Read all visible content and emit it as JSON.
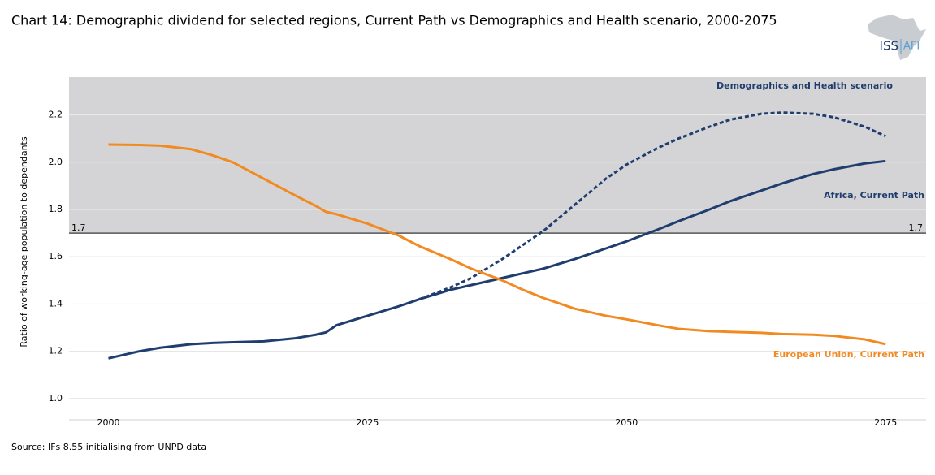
{
  "chart_data": {
    "type": "line",
    "title": "Chart 14: Demographic dividend for selected regions, Current Path vs Demographics and Health scenario, 2000-2075",
    "y_label": "Ratio of working-age population to dependants",
    "source": "Source: IFs 8.55 initialising from UNPD data",
    "logo": {
      "left": "ISS",
      "right": "AFI"
    },
    "x": [
      2000,
      2003,
      2005,
      2008,
      2010,
      2012,
      2015,
      2018,
      2020,
      2021,
      2022,
      2025,
      2028,
      2030,
      2033,
      2035,
      2038,
      2040,
      2042,
      2045,
      2048,
      2050,
      2053,
      2055,
      2058,
      2060,
      2063,
      2065,
      2068,
      2070,
      2073,
      2075
    ],
    "series": [
      {
        "name": "Africa, Current Path",
        "color": "#1f3d6e",
        "dashed": false,
        "values": [
          1.17,
          1.2,
          1.215,
          1.23,
          1.235,
          1.238,
          1.242,
          1.255,
          1.27,
          1.28,
          1.31,
          1.35,
          1.39,
          1.42,
          1.46,
          1.48,
          1.51,
          1.53,
          1.55,
          1.59,
          1.635,
          1.665,
          1.715,
          1.75,
          1.8,
          1.835,
          1.88,
          1.91,
          1.95,
          1.97,
          1.995,
          2.005
        ]
      },
      {
        "name": "Demographics and Health scenario",
        "color": "#1f3d6e",
        "dashed": true,
        "values": [
          null,
          null,
          null,
          null,
          null,
          null,
          null,
          null,
          null,
          null,
          null,
          null,
          null,
          1.42,
          1.47,
          1.51,
          1.59,
          1.65,
          1.71,
          1.82,
          1.93,
          1.99,
          2.06,
          2.1,
          2.15,
          2.18,
          2.205,
          2.21,
          2.205,
          2.19,
          2.15,
          2.11
        ]
      },
      {
        "name": "European Union, Current Path",
        "color": "#f28a22",
        "dashed": false,
        "values": [
          2.075,
          2.073,
          2.07,
          2.055,
          2.03,
          2.0,
          1.93,
          1.86,
          1.815,
          1.79,
          1.78,
          1.74,
          1.69,
          1.645,
          1.59,
          1.55,
          1.5,
          1.46,
          1.425,
          1.38,
          1.35,
          1.335,
          1.31,
          1.295,
          1.285,
          1.282,
          1.278,
          1.273,
          1.27,
          1.265,
          1.25,
          1.23
        ]
      }
    ],
    "threshold": 1.7,
    "xlim": [
      1996.2,
      2078.9
    ],
    "xticks": [
      2000,
      2025,
      2050,
      2075
    ],
    "ylim": [
      0.91,
      2.36
    ],
    "yticks": [
      {
        "value": 1,
        "label": "1.0"
      },
      1.2,
      1.4,
      1.6,
      1.8,
      {
        "value": 2,
        "label": "2.0"
      },
      2.2
    ],
    "grid": true
  }
}
